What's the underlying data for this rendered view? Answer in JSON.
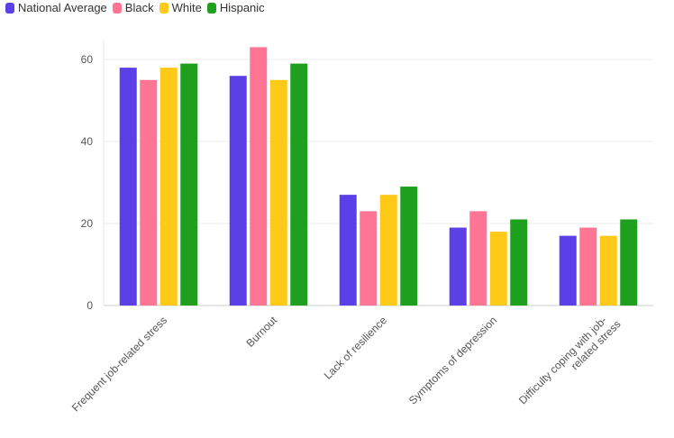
{
  "legend": [
    {
      "name": "National Average",
      "color": "#5a40e6"
    },
    {
      "name": "Black",
      "color": "#ff7593"
    },
    {
      "name": "White",
      "color": "#ffc918"
    },
    {
      "name": "Hispanic",
      "color": "#1ea01e"
    }
  ],
  "chart_data": {
    "type": "bar",
    "categories": [
      "Frequent job-related stress",
      "Burnout",
      "Lack of resilience",
      "Symptoms of depression",
      "Difficulty coping with job-related stress"
    ],
    "series": [
      {
        "name": "National Average",
        "color": "#5a40e6",
        "values": [
          58,
          56,
          27,
          19,
          17
        ]
      },
      {
        "name": "Black",
        "color": "#ff7593",
        "values": [
          55,
          63,
          23,
          23,
          19
        ]
      },
      {
        "name": "White",
        "color": "#ffc918",
        "values": [
          58,
          55,
          27,
          18,
          17
        ]
      },
      {
        "name": "Hispanic",
        "color": "#1ea01e",
        "values": [
          59,
          59,
          29,
          21,
          21
        ]
      }
    ],
    "y_ticks": [
      0,
      20,
      40,
      60
    ],
    "ylim": [
      0,
      65
    ],
    "grid": true,
    "legend_position": "top-left",
    "title": "",
    "xlabel": "",
    "ylabel": ""
  }
}
